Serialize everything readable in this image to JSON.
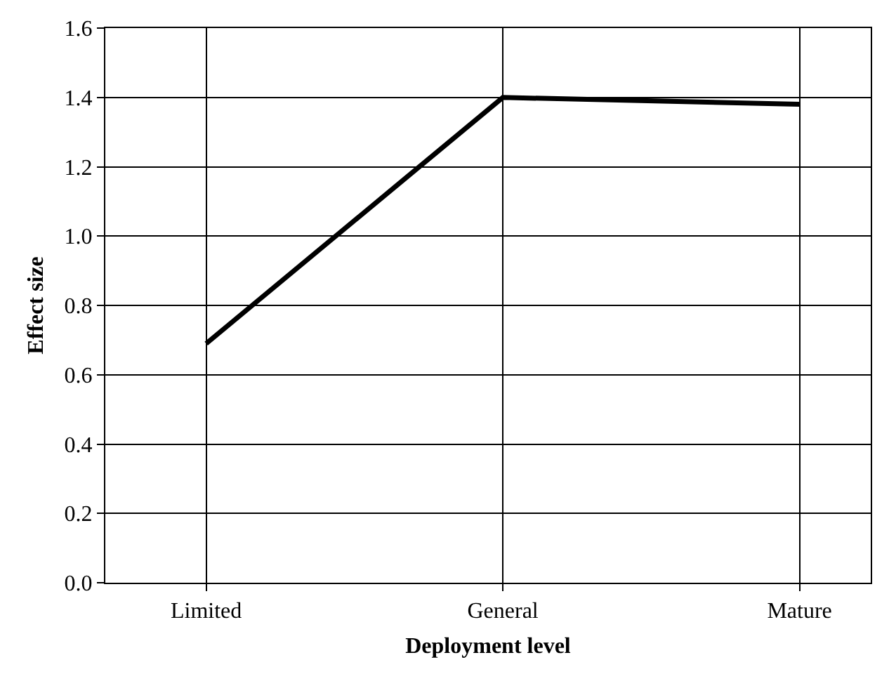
{
  "chart_data": {
    "type": "line",
    "xlabel": "Deployment level",
    "ylabel": "Effect size",
    "categories": [
      "Limited",
      "General",
      "Mature"
    ],
    "series": [
      {
        "color": "#000000",
        "values": [
          0.69,
          1.4,
          1.38
        ]
      }
    ],
    "ylim": [
      0,
      1.6
    ],
    "yticks": [
      {
        "value": 0,
        "label": "0.0"
      },
      {
        "value": 0.2,
        "label": "0.2"
      },
      {
        "value": 0.4,
        "label": "0.4"
      },
      {
        "value": 0.6,
        "label": "0.6"
      },
      {
        "value": 0.8,
        "label": "0.8"
      },
      {
        "value": 1.0,
        "label": "1.0"
      },
      {
        "value": 1.2,
        "label": "1.2"
      },
      {
        "value": 1.4,
        "label": "1.4"
      },
      {
        "value": 1.6,
        "label": "1.6"
      }
    ],
    "grid": true,
    "marker": "none",
    "line_style": "solid"
  }
}
